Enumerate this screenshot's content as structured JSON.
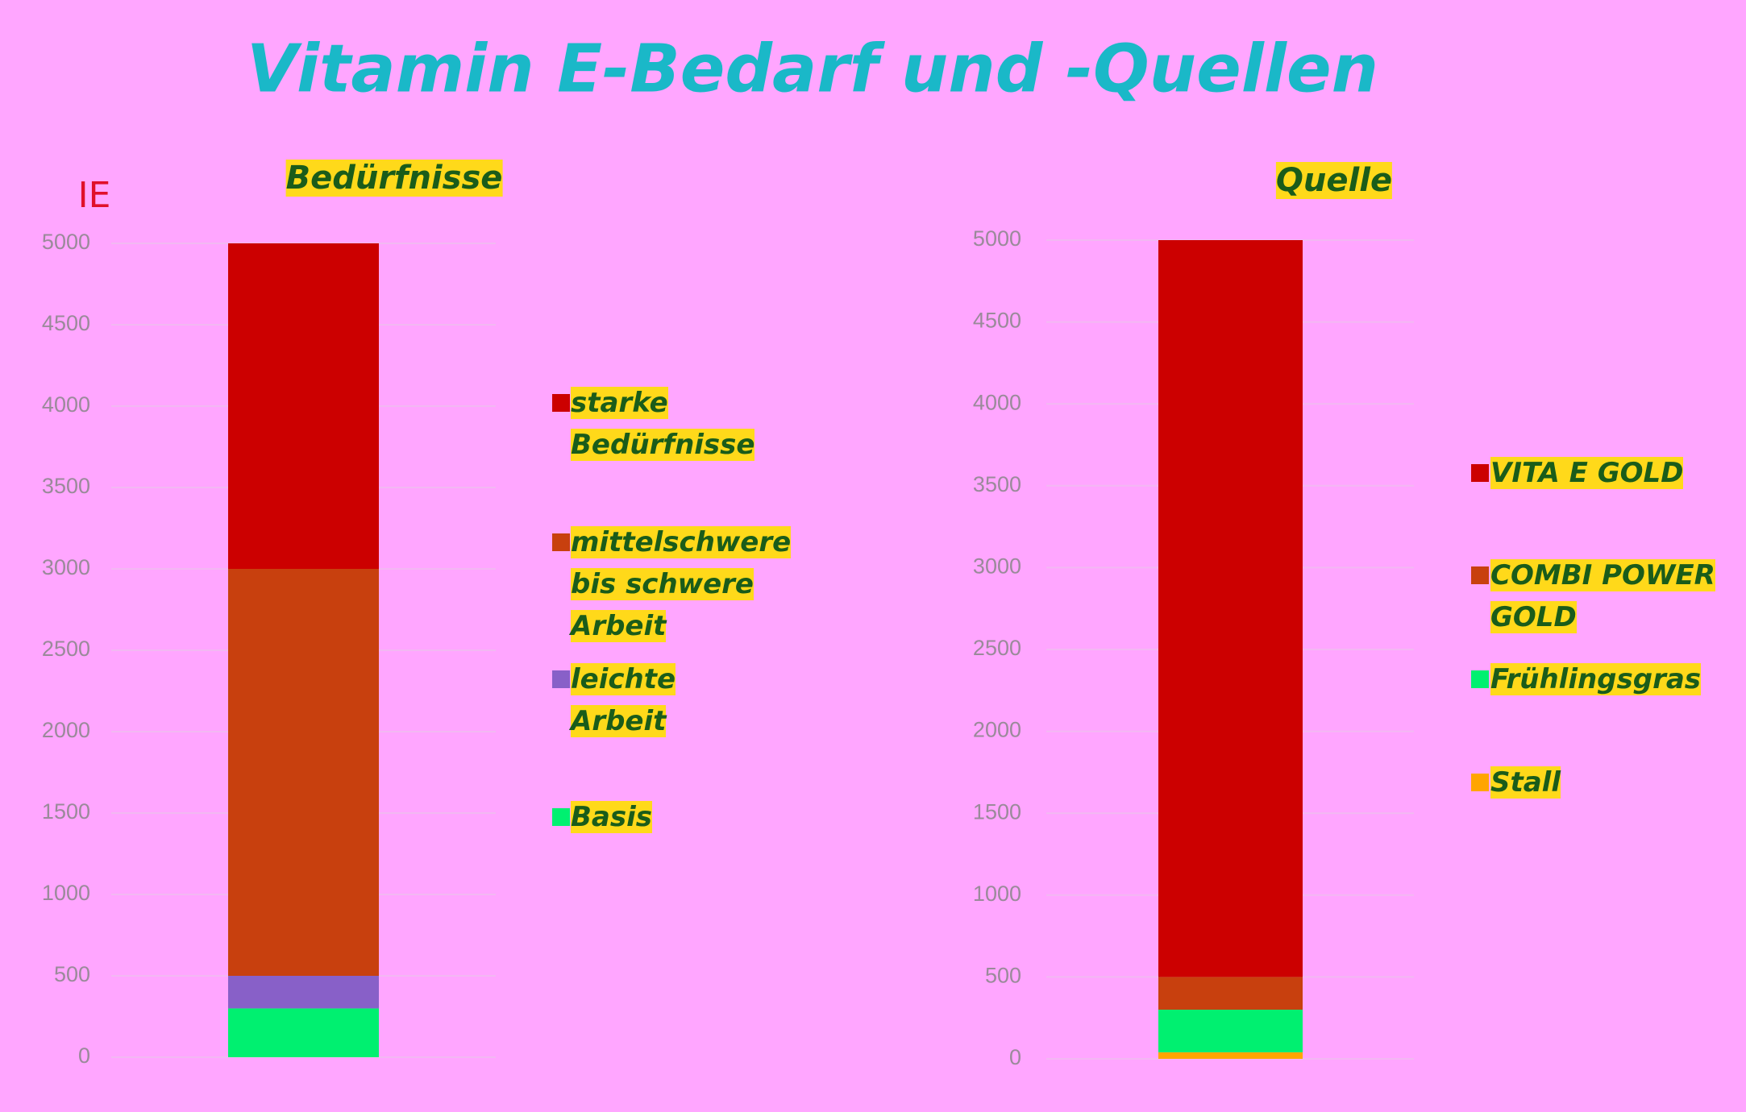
{
  "title": "Vitamin E-Bedarf und -Quellen",
  "chart_data": [
    {
      "type": "stacked-bar",
      "title": "Bedürfnisse",
      "y_label": "IE",
      "ylim": [
        0,
        5000
      ],
      "yticks": [
        0,
        500,
        1000,
        1500,
        2000,
        2500,
        3000,
        3500,
        4000,
        4500,
        5000
      ],
      "grid": true,
      "series": [
        {
          "name": "Basis",
          "color": "#00f070",
          "values": [
            300
          ]
        },
        {
          "name": "leichte Arbeit",
          "color": "#8860c8",
          "values": [
            200
          ]
        },
        {
          "name": "mittelschwere bis schwere Arbeit",
          "color": "#c8400e",
          "values": [
            2500
          ]
        },
        {
          "name": "starke Bedürfnisse",
          "color": "#cc0000",
          "values": [
            2000
          ]
        }
      ]
    },
    {
      "type": "stacked-bar",
      "title": "Quelle",
      "ylim": [
        0,
        5000
      ],
      "yticks": [
        0,
        500,
        1000,
        1500,
        2000,
        2500,
        3000,
        3500,
        4000,
        4500,
        5000
      ],
      "grid": true,
      "series": [
        {
          "name": "Stall",
          "color": "#ffa500",
          "values": [
            40
          ]
        },
        {
          "name": "Frühlingsgras",
          "color": "#00f070",
          "values": [
            260
          ]
        },
        {
          "name": "COMBI POWER GOLD",
          "color": "#c8400e",
          "values": [
            200
          ]
        },
        {
          "name": "VITA E GOLD",
          "color": "#cc0000",
          "values": [
            4500
          ]
        }
      ]
    }
  ]
}
